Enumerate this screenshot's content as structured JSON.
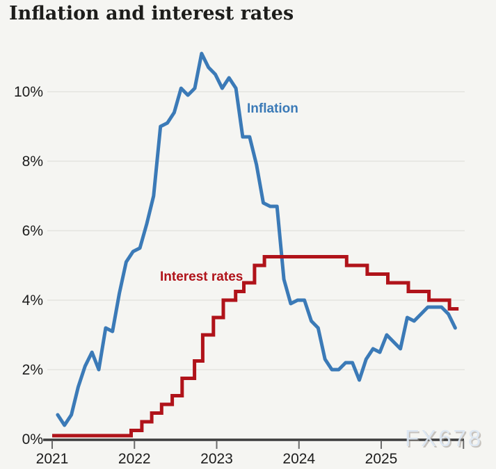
{
  "watermark": {
    "text": "FX678",
    "color": "#dce6f2"
  },
  "colors": {
    "background": "#f5f5f2",
    "text": "#1c1c1c",
    "gridline": "#e3e3e0",
    "axis": "#3d3d3d",
    "tick": "#6b6b6b",
    "inflation_blue": "#3b7ab7",
    "rates_red": "#b0131a"
  },
  "chart_data": {
    "type": "line",
    "title": "Inflation and interest rates",
    "xlabel": "",
    "ylabel": "",
    "x_range": [
      2021,
      2026
    ],
    "y_range": [
      0,
      11.5
    ],
    "grid": "horizontal",
    "legend_position": "inline-annotations",
    "y_ticks": [
      {
        "value": 0,
        "label": "0%"
      },
      {
        "value": 2,
        "label": "2%"
      },
      {
        "value": 4,
        "label": "4%"
      },
      {
        "value": 6,
        "label": "6%"
      },
      {
        "value": 8,
        "label": "8%"
      },
      {
        "value": 10,
        "label": "10%"
      }
    ],
    "x_ticks": [
      {
        "value": 2021,
        "label": "2021"
      },
      {
        "value": 2022,
        "label": "2022"
      },
      {
        "value": 2023,
        "label": "2023"
      },
      {
        "value": 2024,
        "label": "2024"
      },
      {
        "value": 2025,
        "label": "2025"
      },
      {
        "value": 2026,
        "label": ""
      }
    ],
    "series": [
      {
        "name": "Inflation",
        "color": "#3b7ab7",
        "kind": "line",
        "frequency": "monthly",
        "start": "2021-01",
        "values": [
          0.7,
          0.4,
          0.7,
          1.5,
          2.1,
          2.5,
          2.0,
          3.2,
          3.1,
          4.2,
          5.1,
          5.4,
          5.5,
          6.2,
          7.0,
          9.0,
          9.1,
          9.4,
          10.1,
          9.9,
          10.1,
          11.1,
          10.7,
          10.5,
          10.1,
          10.4,
          10.1,
          8.7,
          8.7,
          7.9,
          6.8,
          6.7,
          6.7,
          4.6,
          3.9,
          4.0,
          4.0,
          3.4,
          3.2,
          2.3,
          2.0,
          2.0,
          2.2,
          2.2,
          1.7,
          2.3,
          2.6,
          2.5,
          3.0,
          2.8,
          2.6,
          3.5,
          3.4,
          3.6,
          3.8,
          3.8,
          3.8,
          3.6,
          3.2
        ]
      },
      {
        "name": "Interest rates",
        "color": "#b0131a",
        "kind": "step",
        "steps": [
          {
            "year": 2021.0,
            "rate": 0.1
          },
          {
            "year": 2021.96,
            "rate": 0.25
          },
          {
            "year": 2022.09,
            "rate": 0.5
          },
          {
            "year": 2022.21,
            "rate": 0.75
          },
          {
            "year": 2022.33,
            "rate": 1.0
          },
          {
            "year": 2022.46,
            "rate": 1.25
          },
          {
            "year": 2022.58,
            "rate": 1.75
          },
          {
            "year": 2022.73,
            "rate": 2.25
          },
          {
            "year": 2022.83,
            "rate": 3.0
          },
          {
            "year": 2022.96,
            "rate": 3.5
          },
          {
            "year": 2023.08,
            "rate": 4.0
          },
          {
            "year": 2023.23,
            "rate": 4.25
          },
          {
            "year": 2023.33,
            "rate": 4.5
          },
          {
            "year": 2023.46,
            "rate": 5.0
          },
          {
            "year": 2023.58,
            "rate": 5.25
          },
          {
            "year": 2024.58,
            "rate": 5.0
          },
          {
            "year": 2024.83,
            "rate": 4.75
          },
          {
            "year": 2025.08,
            "rate": 4.5
          },
          {
            "year": 2025.33,
            "rate": 4.25
          },
          {
            "year": 2025.58,
            "rate": 4.0
          },
          {
            "year": 2025.83,
            "rate": 3.75
          }
        ],
        "end_year": 2025.94
      }
    ],
    "annotations": [
      {
        "text": "Inflation",
        "series": "Inflation"
      },
      {
        "text": "Interest rates",
        "series": "Interest rates"
      }
    ]
  }
}
